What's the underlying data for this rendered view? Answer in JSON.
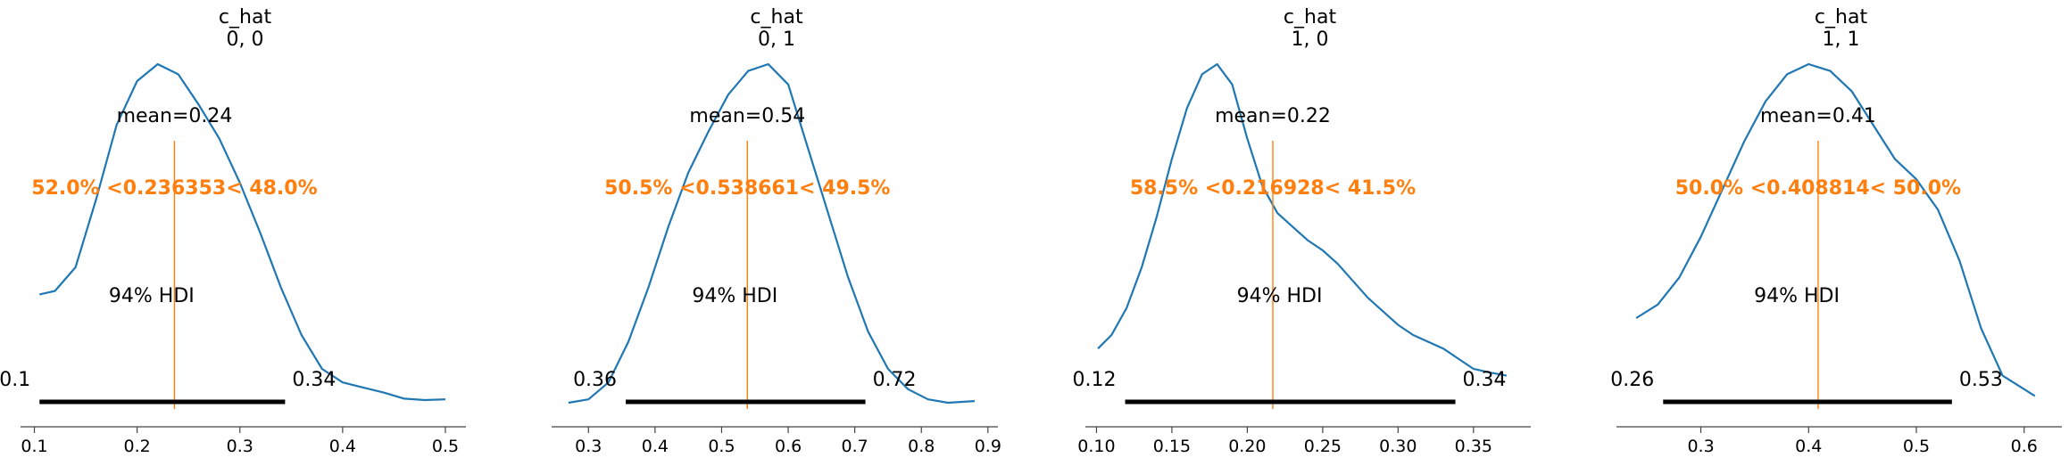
{
  "colors": {
    "curve": "#1f77b4",
    "ref": "#ff7f0e",
    "hdi": "#000000",
    "axis": "#444444",
    "text": "#000000"
  },
  "chart_data": [
    {
      "type": "line",
      "title": [
        "c_hat",
        "0, 0"
      ],
      "xlim": [
        0.09,
        0.52
      ],
      "xticks": [
        0.1,
        0.2,
        0.3,
        0.4,
        0.5
      ],
      "xtick_labels": [
        "0.1",
        "0.2",
        "0.3",
        "0.4",
        "0.5"
      ],
      "x": [
        0.105,
        0.12,
        0.14,
        0.16,
        0.18,
        0.2,
        0.22,
        0.24,
        0.26,
        0.28,
        0.3,
        0.32,
        0.34,
        0.36,
        0.38,
        0.4,
        0.42,
        0.44,
        0.46,
        0.48,
        0.5
      ],
      "y": [
        0.32,
        0.33,
        0.4,
        0.6,
        0.82,
        0.95,
        1.0,
        0.97,
        0.88,
        0.78,
        0.65,
        0.5,
        0.34,
        0.2,
        0.1,
        0.06,
        0.045,
        0.03,
        0.012,
        0.008,
        0.01
      ],
      "mean_label": "mean=0.24",
      "ref_value": 0.236353,
      "ref_label": "52.0% <0.236353< 48.0%",
      "hdi_label": "94% HDI",
      "hdi": [
        0.105,
        0.344
      ],
      "hdi_low_label": "0.1",
      "hdi_high_label": "0.34"
    },
    {
      "type": "line",
      "title": [
        "c_hat",
        "0, 1"
      ],
      "xlim": [
        0.25,
        0.915
      ],
      "xticks": [
        0.3,
        0.4,
        0.5,
        0.6,
        0.7,
        0.8,
        0.9
      ],
      "xtick_labels": [
        "0.3",
        "0.4",
        "0.5",
        "0.6",
        "0.7",
        "0.8",
        "0.9"
      ],
      "x": [
        0.27,
        0.3,
        0.33,
        0.36,
        0.39,
        0.42,
        0.45,
        0.48,
        0.51,
        0.54,
        0.57,
        0.6,
        0.63,
        0.66,
        0.69,
        0.72,
        0.75,
        0.78,
        0.81,
        0.84,
        0.88
      ],
      "y": [
        0.0,
        0.01,
        0.06,
        0.18,
        0.34,
        0.52,
        0.68,
        0.8,
        0.91,
        0.98,
        1.0,
        0.94,
        0.75,
        0.56,
        0.37,
        0.21,
        0.1,
        0.04,
        0.01,
        0.0,
        0.005
      ],
      "mean_label": "mean=0.54",
      "ref_value": 0.538661,
      "ref_label": "50.5% <0.538661< 49.5%",
      "hdi_label": "94% HDI",
      "hdi": [
        0.356,
        0.716
      ],
      "hdi_low_label": "0.36",
      "hdi_high_label": "0.72"
    },
    {
      "type": "line",
      "title": [
        "c_hat",
        "1, 0"
      ],
      "xlim": [
        0.095,
        0.388
      ],
      "xticks": [
        0.1,
        0.15,
        0.2,
        0.25,
        0.3,
        0.35
      ],
      "xtick_labels": [
        "0.10",
        "0.15",
        "0.20",
        "0.25",
        "0.30",
        "0.35"
      ],
      "x": [
        0.101,
        0.11,
        0.12,
        0.13,
        0.14,
        0.15,
        0.16,
        0.17,
        0.18,
        0.19,
        0.2,
        0.21,
        0.22,
        0.23,
        0.24,
        0.25,
        0.26,
        0.27,
        0.28,
        0.29,
        0.3,
        0.31,
        0.32,
        0.33,
        0.34,
        0.35,
        0.36,
        0.372
      ],
      "y": [
        0.16,
        0.2,
        0.28,
        0.4,
        0.55,
        0.72,
        0.87,
        0.97,
        1.0,
        0.94,
        0.78,
        0.64,
        0.56,
        0.52,
        0.48,
        0.45,
        0.41,
        0.36,
        0.31,
        0.27,
        0.23,
        0.2,
        0.18,
        0.16,
        0.13,
        0.1,
        0.09,
        0.08
      ],
      "mean_label": "mean=0.22",
      "ref_value": 0.216928,
      "ref_label": "58.5% <0.216928< 41.5%",
      "hdi_label": "94% HDI",
      "hdi": [
        0.119,
        0.338
      ],
      "hdi_low_label": "0.12",
      "hdi_high_label": "0.34"
    },
    {
      "type": "line",
      "title": [
        "c_hat",
        "1, 1"
      ],
      "xlim": [
        0.225,
        0.635
      ],
      "xticks": [
        0.3,
        0.4,
        0.5,
        0.6
      ],
      "xtick_labels": [
        "0.3",
        "0.4",
        "0.5",
        "0.6"
      ],
      "x": [
        0.24,
        0.26,
        0.28,
        0.3,
        0.32,
        0.34,
        0.36,
        0.38,
        0.4,
        0.42,
        0.44,
        0.46,
        0.48,
        0.5,
        0.52,
        0.54,
        0.56,
        0.58,
        0.61
      ],
      "y": [
        0.25,
        0.29,
        0.37,
        0.49,
        0.63,
        0.77,
        0.89,
        0.97,
        1.0,
        0.98,
        0.92,
        0.82,
        0.72,
        0.66,
        0.57,
        0.42,
        0.22,
        0.08,
        0.02
      ],
      "mean_label": "mean=0.41",
      "ref_value": 0.408814,
      "ref_label": "50.0% <0.408814< 50.0%",
      "hdi_label": "94% HDI",
      "hdi": [
        0.265,
        0.533
      ],
      "hdi_low_label": "0.26",
      "hdi_high_label": "0.53"
    }
  ]
}
